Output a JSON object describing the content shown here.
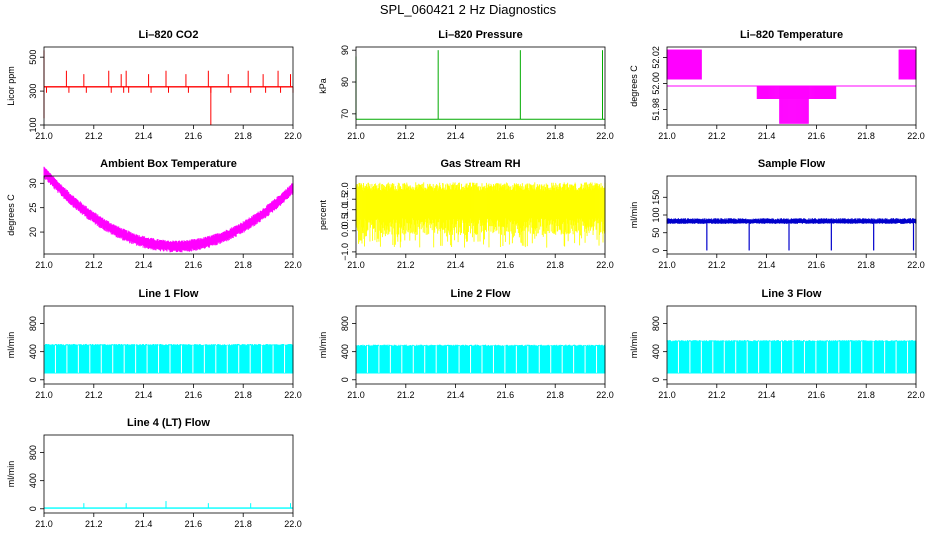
{
  "title": "SPL_060421  2 Hz Diagnostics",
  "chart_data": [
    {
      "type": "line",
      "title": "Li–820 CO2",
      "ylabel": "Licor ppm",
      "color": "#ff0000",
      "xlim": [
        21.0,
        22.0
      ],
      "ylim": [
        100,
        560
      ],
      "xticks": [
        21.0,
        21.2,
        21.4,
        21.6,
        21.8,
        22.0
      ],
      "xtick_labels": [
        "21.0",
        "21.2",
        "21.4",
        "21.6",
        "21.8",
        "22.0"
      ],
      "yticks": [
        100,
        300,
        500
      ],
      "ytick_labels": [
        "100",
        "300",
        "500"
      ],
      "profile": "co2",
      "baseline": 325
    },
    {
      "type": "line",
      "title": "Li–820 Pressure",
      "ylabel": "kPa",
      "color": "#00aa00",
      "xlim": [
        21.0,
        22.0
      ],
      "ylim": [
        66.5,
        91
      ],
      "xticks": [
        21.0,
        21.2,
        21.4,
        21.6,
        21.8,
        22.0
      ],
      "xtick_labels": [
        "21.0",
        "21.2",
        "21.4",
        "21.6",
        "21.8",
        "22.0"
      ],
      "yticks": [
        70,
        80,
        90
      ],
      "ytick_labels": [
        "70",
        "80",
        "90"
      ],
      "profile": "pressure",
      "baseline": 68.3
    },
    {
      "type": "line",
      "title": "Li–820 Temperature",
      "ylabel": "degrees C",
      "color": "#ff00ff",
      "xlim": [
        21.0,
        22.0
      ],
      "ylim": [
        51.968,
        52.028
      ],
      "xticks": [
        21.0,
        21.2,
        21.4,
        21.6,
        21.8,
        22.0
      ],
      "xtick_labels": [
        "21.0",
        "21.2",
        "21.4",
        "21.6",
        "21.8",
        "22.0"
      ],
      "yticks": [
        51.98,
        52.0,
        52.02
      ],
      "ytick_labels": [
        "51.98",
        "52.00",
        "52.02"
      ],
      "profile": "temp",
      "baseline": 51.998
    },
    {
      "type": "line",
      "title": "Ambient Box Temperature",
      "ylabel": "degrees C",
      "color": "#ff00ff",
      "xlim": [
        21.0,
        22.0
      ],
      "ylim": [
        15.5,
        31.5
      ],
      "xticks": [
        21.0,
        21.2,
        21.4,
        21.6,
        21.8,
        22.0
      ],
      "xtick_labels": [
        "21.0",
        "21.2",
        "21.4",
        "21.6",
        "21.8",
        "22.0"
      ],
      "yticks": [
        20,
        25,
        30
      ],
      "ytick_labels": [
        "20",
        "25",
        "30"
      ],
      "profile": "ambient",
      "baseline": 29.5
    },
    {
      "type": "area",
      "title": "Gas Stream RH",
      "ylabel": "percent",
      "color": "#ffff00",
      "xlim": [
        21.0,
        22.0
      ],
      "ylim": [
        -1.1,
        2.6
      ],
      "xticks": [
        21.0,
        21.2,
        21.4,
        21.6,
        21.8,
        22.0
      ],
      "xtick_labels": [
        "21.0",
        "21.2",
        "21.4",
        "21.6",
        "21.8",
        "22.0"
      ],
      "yticks": [
        -1.0,
        0.0,
        0.5,
        1.0,
        1.5,
        2.0
      ],
      "ytick_labels": [
        "−1.0",
        "0.0",
        "0.5",
        "1.0",
        "1.5",
        "2.0"
      ],
      "profile": "rh",
      "baseline": 2.1
    },
    {
      "type": "line",
      "title": "Sample Flow",
      "ylabel": "ml/min",
      "color": "#0000cc",
      "xlim": [
        21.0,
        22.0
      ],
      "ylim": [
        -10,
        210
      ],
      "xticks": [
        21.0,
        21.2,
        21.4,
        21.6,
        21.8,
        22.0
      ],
      "xtick_labels": [
        "21.0",
        "21.2",
        "21.4",
        "21.6",
        "21.8",
        "22.0"
      ],
      "yticks": [
        0,
        50,
        100,
        150
      ],
      "ytick_labels": [
        "0",
        "50",
        "100",
        "150"
      ],
      "profile": "sample",
      "baseline": 82
    },
    {
      "type": "area",
      "title": "Line 1 Flow",
      "ylabel": "ml/min",
      "color": "#00ffff",
      "xlim": [
        21.0,
        22.0
      ],
      "ylim": [
        -60,
        1050
      ],
      "xticks": [
        21.0,
        21.2,
        21.4,
        21.6,
        21.8,
        22.0
      ],
      "xtick_labels": [
        "21.0",
        "21.2",
        "21.4",
        "21.6",
        "21.8",
        "22.0"
      ],
      "yticks": [
        0,
        400,
        800
      ],
      "ytick_labels": [
        "0",
        "400",
        "800"
      ],
      "profile": "flow",
      "baseline": 500
    },
    {
      "type": "area",
      "title": "Line 2 Flow",
      "ylabel": "ml/min",
      "color": "#00ffff",
      "xlim": [
        21.0,
        22.0
      ],
      "ylim": [
        -60,
        1050
      ],
      "xticks": [
        21.0,
        21.2,
        21.4,
        21.6,
        21.8,
        22.0
      ],
      "xtick_labels": [
        "21.0",
        "21.2",
        "21.4",
        "21.6",
        "21.8",
        "22.0"
      ],
      "yticks": [
        0,
        400,
        800
      ],
      "ytick_labels": [
        "0",
        "400",
        "800"
      ],
      "profile": "flow",
      "baseline": 490
    },
    {
      "type": "area",
      "title": "Line 3 Flow",
      "ylabel": "ml/min",
      "color": "#00ffff",
      "xlim": [
        21.0,
        22.0
      ],
      "ylim": [
        -60,
        1050
      ],
      "xticks": [
        21.0,
        21.2,
        21.4,
        21.6,
        21.8,
        22.0
      ],
      "xtick_labels": [
        "21.0",
        "21.2",
        "21.4",
        "21.6",
        "21.8",
        "22.0"
      ],
      "yticks": [
        0,
        400,
        800
      ],
      "ytick_labels": [
        "0",
        "400",
        "800"
      ],
      "profile": "flow",
      "baseline": 555
    },
    {
      "type": "line",
      "title": "Line 4 (LT) Flow",
      "ylabel": "ml/min",
      "color": "#00ffff",
      "xlim": [
        21.0,
        22.0
      ],
      "ylim": [
        -60,
        1050
      ],
      "xticks": [
        21.0,
        21.2,
        21.4,
        21.6,
        21.8,
        22.0
      ],
      "xtick_labels": [
        "21.0",
        "21.2",
        "21.4",
        "21.6",
        "21.8",
        "22.0"
      ],
      "yticks": [
        0,
        400,
        800
      ],
      "ytick_labels": [
        "0",
        "400",
        "800"
      ],
      "profile": "line4",
      "baseline": 10
    }
  ]
}
